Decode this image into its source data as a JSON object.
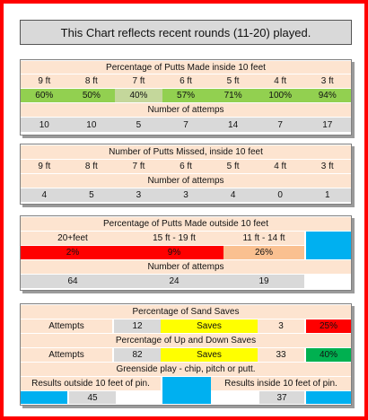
{
  "header": {
    "title": "This Chart reflects recent rounds (11-20) played."
  },
  "made_inside": {
    "title": "Percentage of Putts Made inside 10 feet",
    "distances": [
      "9 ft",
      "8 ft",
      "7 ft",
      "6 ft",
      "5 ft",
      "4 ft",
      "3 ft"
    ],
    "percentages": [
      "60%",
      "50%",
      "40%",
      "57%",
      "71%",
      "100%",
      "94%"
    ],
    "pct_colors": [
      "#92d050",
      "#92d050",
      "#c4d79b",
      "#92d050",
      "#92d050",
      "#92d050",
      "#92d050"
    ],
    "attempts_label": "Number of attemps",
    "attempts": [
      "10",
      "10",
      "5",
      "7",
      "14",
      "7",
      "17"
    ]
  },
  "missed_inside": {
    "title": "Number of Putts Missed, inside 10 feet",
    "distances": [
      "9 ft",
      "8 ft",
      "7 ft",
      "6 ft",
      "5 ft",
      "4 ft",
      "3 ft"
    ],
    "attempts_label": "Number of attemps",
    "counts": [
      "4",
      "5",
      "3",
      "3",
      "4",
      "0",
      "1"
    ]
  },
  "made_outside": {
    "title": "Percentage of Putts Made outside 10 feet",
    "ranges": [
      "20+feet",
      "15 ft - 19 ft",
      "11 ft - 14 ft"
    ],
    "percentages": [
      "2%",
      "9%",
      "26%"
    ],
    "attempts_label": "Number of attemps",
    "attempts": [
      "64",
      "24",
      "19"
    ]
  },
  "short_game": {
    "sand_title": "Percentage of Sand Saves",
    "sand_attempts_label": "Attempts",
    "sand_attempts": "12",
    "sand_saves_label": "Saves",
    "sand_saves": "3",
    "sand_pct": "25%",
    "updown_title": "Percentage of Up and Down Saves",
    "updown_attempts_label": "Attempts",
    "updown_attempts": "82",
    "updown_saves_label": "Saves",
    "updown_saves": "33",
    "updown_pct": "40%",
    "greenside_title": "Greenside play - chip, pitch or putt.",
    "outside_label": "Results outside 10 feet of pin.",
    "outside_value": "45",
    "inside_label": "Results inside 10 feet of pin.",
    "inside_value": "37"
  },
  "colors": {
    "frame": "#ff0000",
    "green": "#92d050",
    "light_green": "#c4d79b",
    "red": "#ff0000",
    "peach": "#fde4d0",
    "orange": "#fac090",
    "grey": "#d9d9d9",
    "yellow": "#ffff00",
    "blue": "#00b0f0",
    "dark_green": "#00b050"
  }
}
